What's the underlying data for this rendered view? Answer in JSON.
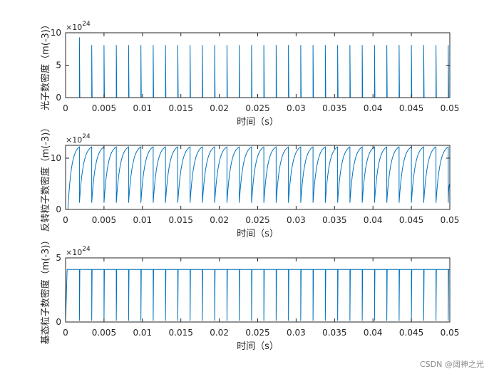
{
  "watermark": "CSDN @阔神之光",
  "series_color": "#0072BD",
  "chart_data": [
    {
      "type": "line",
      "xlabel": "时间（s）",
      "ylabel": "光子数密度（m(-3)）",
      "exponent": "24",
      "y_multiplier_label": "×10",
      "xlim": [
        0,
        0.05
      ],
      "ylim": [
        0,
        10
      ],
      "xticks": [
        "0",
        "0.005",
        "0.01",
        "0.015",
        "0.02",
        "0.025",
        "0.03",
        "0.035",
        "0.04",
        "0.045",
        "0.05"
      ],
      "yticks": [
        "0",
        "5",
        "10"
      ],
      "series": [
        {
          "pattern": "spikes",
          "period": 0.0016,
          "first": 0.0018,
          "peak_first": 9.3,
          "peak": 8.1
        }
      ]
    },
    {
      "type": "line",
      "xlabel": "时间（s）",
      "ylabel": "反转粒子数密度（m(-3)）",
      "exponent": "24",
      "y_multiplier_label": "×10",
      "xlim": [
        0,
        0.05
      ],
      "ylim": [
        0,
        12.5
      ],
      "xticks": [
        "0",
        "0.005",
        "0.01",
        "0.015",
        "0.02",
        "0.025",
        "0.03",
        "0.035",
        "0.04",
        "0.045",
        "0.05"
      ],
      "yticks": [
        "0",
        "10"
      ],
      "series": [
        {
          "pattern": "sawtooth",
          "period": 0.0016,
          "first": 0.0018,
          "min": 1.3,
          "max": 12.2
        }
      ]
    },
    {
      "type": "line",
      "xlabel": "时间（s）",
      "ylabel": "基态粒子数密度（m(-3)）",
      "exponent": "24",
      "y_multiplier_label": "×10",
      "xlim": [
        0,
        0.05
      ],
      "ylim": [
        0,
        5
      ],
      "xticks": [
        "0",
        "0.005",
        "0.01",
        "0.015",
        "0.02",
        "0.025",
        "0.03",
        "0.035",
        "0.04",
        "0.045",
        "0.05"
      ],
      "yticks": [
        "0",
        "5"
      ],
      "series": [
        {
          "pattern": "dips",
          "period": 0.0016,
          "first": 0.0018,
          "level": 4.1,
          "dip": 0.1
        }
      ]
    }
  ]
}
